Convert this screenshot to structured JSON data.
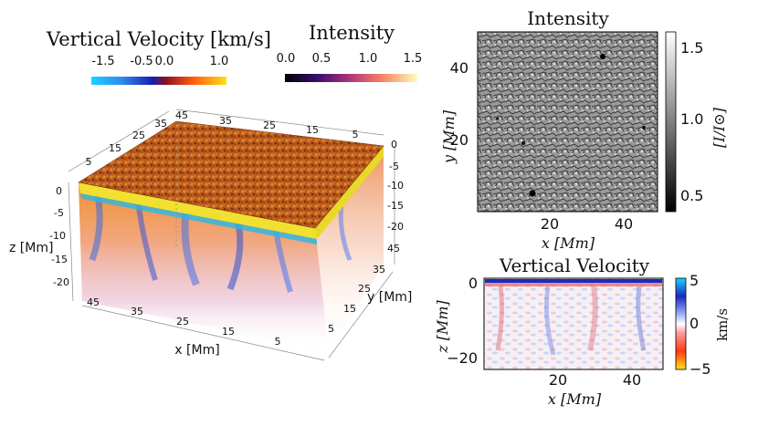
{
  "velocity_colorbar": {
    "title": "Vertical Velocity [km/s]",
    "ticks": [
      "-1.5",
      "-0.5",
      "0.0",
      "1.0"
    ]
  },
  "intensity_colorbar": {
    "title": "Intensity",
    "ticks": [
      "0.0",
      "0.5",
      "1.0",
      "1.5"
    ]
  },
  "cube": {
    "top_x_ticks": [
      "45",
      "35",
      "25",
      "15",
      "5"
    ],
    "top_y_ticks": [
      "5",
      "15",
      "25",
      "35",
      "45"
    ],
    "right_z_ticks": [
      "0",
      "-5",
      "-10",
      "-15",
      "-20"
    ],
    "left_z_ticks": [
      "0",
      "-5",
      "-10",
      "-15",
      "-20"
    ],
    "z_label": "z [Mm]",
    "bottom_x_ticks": [
      "45",
      "35",
      "25",
      "15",
      "5"
    ],
    "x_label": "x [Mm]",
    "y_ticks": [
      "45",
      "35",
      "25",
      "15",
      "5"
    ],
    "y_label": "y [Mm]"
  },
  "intensity_panel": {
    "title": "Intensity",
    "y_ticks": [
      "40",
      "20"
    ],
    "y_label": "y [Mm]",
    "x_ticks": [
      "20",
      "40"
    ],
    "x_label": "x [Mm]",
    "cbar_ticks": [
      "1.5",
      "1.0",
      "0.5"
    ],
    "cbar_label": "[I/I⊙]"
  },
  "velocity_panel": {
    "title": "Vertical Velocity",
    "y_ticks": [
      "0",
      "−20"
    ],
    "y_label": "z [Mm]",
    "x_ticks": [
      "20",
      "40"
    ],
    "x_label": "x [Mm]",
    "cbar_ticks": [
      "5",
      "0",
      "−5"
    ],
    "cbar_label": "km/s"
  }
}
